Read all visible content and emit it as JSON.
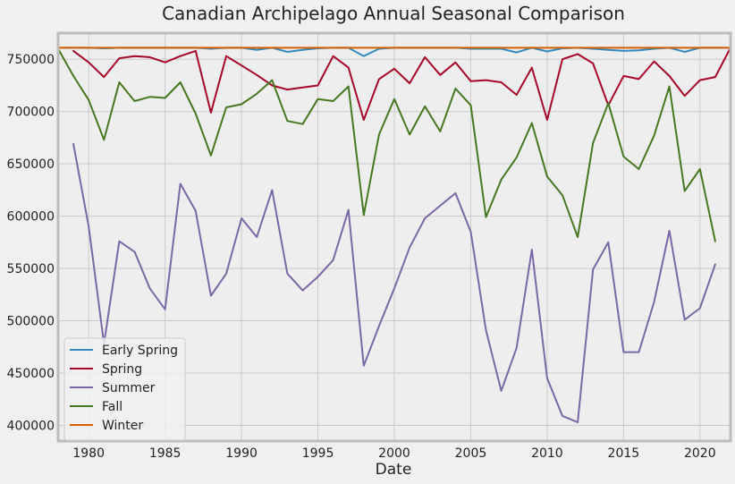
{
  "chart_data": {
    "type": "line",
    "title": "Canadian Archipelago Annual Seasonal Comparison",
    "xlabel": "Date",
    "ylabel": "",
    "xlim": [
      1978,
      2022
    ],
    "ylim": [
      385000,
      775000
    ],
    "xticks": [
      1980,
      1985,
      1990,
      1995,
      2000,
      2005,
      2010,
      2015,
      2020
    ],
    "yticks": [
      400000,
      450000,
      500000,
      550000,
      600000,
      650000,
      700000,
      750000
    ],
    "grid": true,
    "legend_position": "lower-left",
    "x": [
      1978,
      1979,
      1980,
      1981,
      1982,
      1983,
      1984,
      1985,
      1986,
      1987,
      1988,
      1989,
      1990,
      1991,
      1992,
      1993,
      1994,
      1995,
      1996,
      1997,
      1998,
      1999,
      2000,
      2001,
      2002,
      2003,
      2004,
      2005,
      2006,
      2007,
      2008,
      2009,
      2010,
      2011,
      2012,
      2013,
      2014,
      2015,
      2016,
      2017,
      2018,
      2019,
      2020,
      2021,
      2022
    ],
    "series": [
      {
        "name": "Early Spring",
        "color": "#348abd",
        "values": [
          761000,
          761000,
          761000,
          760500,
          761000,
          761000,
          761000,
          761000,
          761000,
          761000,
          760000,
          761000,
          761000,
          759000,
          761000,
          757000,
          759000,
          760500,
          761000,
          761000,
          753000,
          760000,
          761000,
          761000,
          761000,
          761000,
          761000,
          760000,
          760000,
          760000,
          756500,
          761000,
          757500,
          760500,
          761000,
          760000,
          759000,
          758000,
          758500,
          760000,
          761000,
          757000,
          761000,
          761000,
          761000
        ]
      },
      {
        "name": "Spring",
        "color": "#a60628",
        "values": [
          null,
          758000,
          747000,
          733000,
          751000,
          753000,
          752000,
          747000,
          753000,
          758000,
          699000,
          753000,
          744000,
          735000,
          725000,
          721000,
          723000,
          725000,
          753000,
          742000,
          692000,
          731000,
          741000,
          727000,
          752000,
          735000,
          747000,
          729000,
          730000,
          728000,
          716000,
          742000,
          692000,
          750000,
          755000,
          746000,
          706000,
          734000,
          731000,
          748000,
          734000,
          715000,
          730000,
          733000,
          761000
        ]
      },
      {
        "name": "Summer",
        "color": "#7a68a6",
        "values": [
          null,
          669000,
          590000,
          478000,
          576000,
          566000,
          531000,
          511000,
          631000,
          605000,
          524000,
          545000,
          598000,
          580000,
          625000,
          545000,
          529000,
          542000,
          558000,
          606000,
          457000,
          495000,
          531000,
          570000,
          598000,
          610000,
          622000,
          585000,
          491000,
          433000,
          474000,
          568000,
          445000,
          409000,
          403000,
          549000,
          575000,
          470000,
          470000,
          518000,
          586000,
          501000,
          512000,
          554000,
          null
        ]
      },
      {
        "name": "Fall",
        "color": "#467821",
        "values": [
          760000,
          734000,
          711000,
          673000,
          728000,
          710000,
          714000,
          713000,
          728000,
          698000,
          658000,
          704000,
          707000,
          717000,
          730000,
          691000,
          688000,
          712000,
          710000,
          724000,
          601000,
          678000,
          712000,
          678000,
          705000,
          681000,
          722000,
          706000,
          599000,
          635000,
          656000,
          689000,
          638000,
          620000,
          580000,
          670000,
          708000,
          657000,
          645000,
          677000,
          724000,
          624000,
          645000,
          576000,
          null
        ]
      },
      {
        "name": "Winter",
        "color": "#d55e00",
        "values": [
          761000,
          761000,
          761000,
          761000,
          761000,
          761000,
          761000,
          761000,
          761000,
          761000,
          761000,
          761000,
          761000,
          761000,
          761000,
          761000,
          761000,
          761000,
          761000,
          761000,
          761000,
          761000,
          761000,
          761000,
          761000,
          761000,
          761000,
          761000,
          761000,
          761000,
          761000,
          761000,
          761000,
          761000,
          761000,
          761000,
          761000,
          761000,
          761000,
          761000,
          761000,
          761000,
          761000,
          761000,
          761000
        ]
      }
    ]
  }
}
